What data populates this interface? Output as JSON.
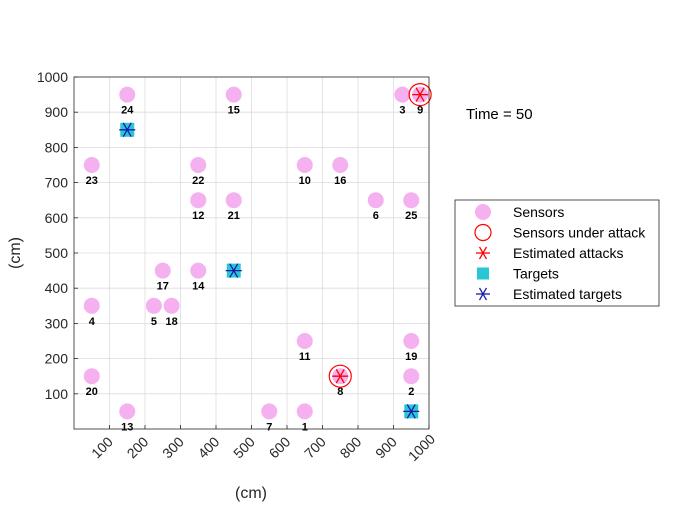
{
  "chart_data": {
    "type": "scatter",
    "title": "",
    "xlabel": "(cm)",
    "ylabel": "(cm)",
    "xlim": [
      0,
      1000
    ],
    "ylim": [
      0,
      1000
    ],
    "xticks": [
      100,
      200,
      300,
      400,
      500,
      600,
      700,
      800,
      900,
      1000
    ],
    "yticks": [
      100,
      200,
      300,
      400,
      500,
      600,
      700,
      800,
      900,
      1000
    ],
    "grid": true,
    "legend_position": "right",
    "annotation": "Time = 50",
    "colors": {
      "sensor": "#f5b0f0",
      "attack": "#ff0000",
      "target": "#29c7d6",
      "estimated_target": "#1a1aa8"
    },
    "sensors": [
      {
        "id": "1",
        "x": 650,
        "y": 50
      },
      {
        "id": "2",
        "x": 950,
        "y": 150
      },
      {
        "id": "3",
        "x": 925,
        "y": 950
      },
      {
        "id": "4",
        "x": 50,
        "y": 350
      },
      {
        "id": "5",
        "x": 225,
        "y": 350
      },
      {
        "id": "6",
        "x": 850,
        "y": 650
      },
      {
        "id": "7",
        "x": 550,
        "y": 50
      },
      {
        "id": "8",
        "x": 750,
        "y": 150
      },
      {
        "id": "9",
        "x": 975,
        "y": 950
      },
      {
        "id": "10",
        "x": 650,
        "y": 750
      },
      {
        "id": "11",
        "x": 650,
        "y": 250
      },
      {
        "id": "12",
        "x": 350,
        "y": 650
      },
      {
        "id": "13",
        "x": 150,
        "y": 50
      },
      {
        "id": "14",
        "x": 350,
        "y": 450
      },
      {
        "id": "15",
        "x": 450,
        "y": 950
      },
      {
        "id": "16",
        "x": 750,
        "y": 750
      },
      {
        "id": "17",
        "x": 250,
        "y": 450
      },
      {
        "id": "18",
        "x": 275,
        "y": 350
      },
      {
        "id": "19",
        "x": 950,
        "y": 250
      },
      {
        "id": "20",
        "x": 50,
        "y": 150
      },
      {
        "id": "21",
        "x": 450,
        "y": 650
      },
      {
        "id": "22",
        "x": 350,
        "y": 750
      },
      {
        "id": "23",
        "x": 50,
        "y": 750
      },
      {
        "id": "24",
        "x": 150,
        "y": 950
      },
      {
        "id": "25",
        "x": 950,
        "y": 650
      }
    ],
    "sensors_under_attack": [
      {
        "x": 975,
        "y": 950
      },
      {
        "x": 750,
        "y": 150
      }
    ],
    "estimated_attacks": [
      {
        "x": 975,
        "y": 950
      },
      {
        "x": 750,
        "y": 150
      }
    ],
    "targets": [
      {
        "x": 150,
        "y": 850
      },
      {
        "x": 450,
        "y": 450
      },
      {
        "x": 950,
        "y": 50
      }
    ],
    "estimated_targets": [
      {
        "x": 150,
        "y": 850
      },
      {
        "x": 450,
        "y": 450
      },
      {
        "x": 950,
        "y": 50
      }
    ],
    "legend": [
      {
        "key": "sensor",
        "label": "Sensors"
      },
      {
        "key": "attack_circle",
        "label": "Sensors under attack"
      },
      {
        "key": "attack_star",
        "label": "Estimated attacks"
      },
      {
        "key": "target",
        "label": "Targets"
      },
      {
        "key": "est_target",
        "label": "Estimated targets"
      }
    ]
  }
}
